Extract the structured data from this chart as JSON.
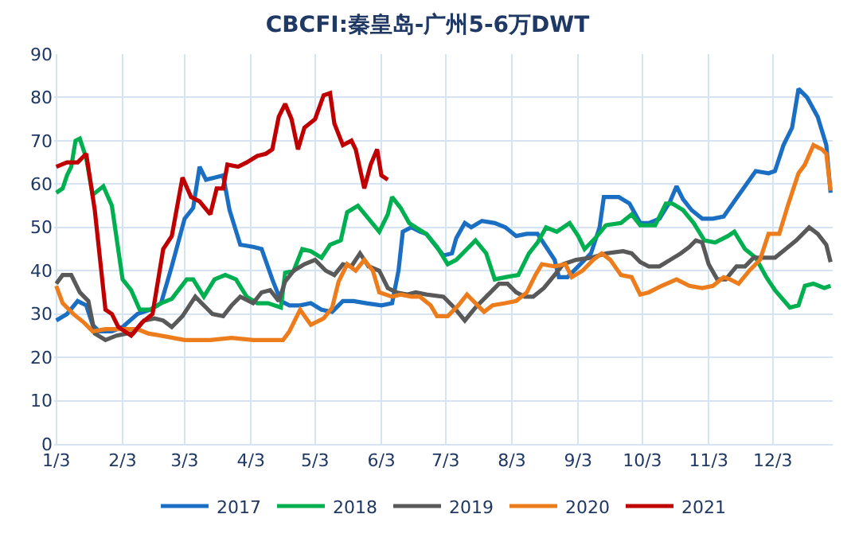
{
  "chart_data": {
    "type": "line",
    "title": "CBCFI:秦皇岛-广州5-6万DWT",
    "xlim": [
      "--01-02",
      "--12-31"
    ],
    "xticks": [
      {
        "value": "--01-03",
        "label": "1/3"
      },
      {
        "value": "--02-03",
        "label": "2/3"
      },
      {
        "value": "--03-03",
        "label": "3/3"
      },
      {
        "value": "--04-03",
        "label": "4/3"
      },
      {
        "value": "--05-03",
        "label": "5/3"
      },
      {
        "value": "--06-03",
        "label": "6/3"
      },
      {
        "value": "--07-03",
        "label": "7/3"
      },
      {
        "value": "--08-03",
        "label": "8/3"
      },
      {
        "value": "--09-03",
        "label": "9/3"
      },
      {
        "value": "--10-03",
        "label": "10/3"
      },
      {
        "value": "--11-03",
        "label": "11/3"
      },
      {
        "value": "--12-03",
        "label": "12/3"
      }
    ],
    "ylim": [
      0,
      90
    ],
    "yticks": [
      0,
      10,
      20,
      30,
      40,
      50,
      60,
      70,
      80,
      90
    ],
    "grid": true,
    "legend": "bottom",
    "series": [
      {
        "name": "2017",
        "color": "#1b6fc2",
        "x": [
          "--01-03",
          "--01-08",
          "--01-13",
          "--01-17",
          "--01-20",
          "--01-23",
          "--01-29",
          "--02-03",
          "--02-10",
          "--02-16",
          "--02-21",
          "--02-26",
          "--03-03",
          "--03-07",
          "--03-10",
          "--03-13",
          "--03-17",
          "--03-21",
          "--03-24",
          "--03-29",
          "--04-04",
          "--04-08",
          "--04-13",
          "--04-17",
          "--04-21",
          "--04-26",
          "--05-01",
          "--05-06",
          "--05-11",
          "--05-16",
          "--05-21",
          "--05-27",
          "--06-03",
          "--06-08",
          "--06-11",
          "--06-13",
          "--06-17",
          "--06-21",
          "--06-24",
          "--06-28",
          "--07-02",
          "--07-06",
          "--07-08",
          "--07-12",
          "--07-15",
          "--07-20",
          "--07-26",
          "--07-31",
          "--08-05",
          "--08-10",
          "--08-15",
          "--08-19",
          "--08-23",
          "--08-25",
          "--08-29",
          "--09-04",
          "--09-09",
          "--09-13",
          "--09-15",
          "--09-22",
          "--09-27",
          "--10-02",
          "--10-06",
          "--10-11",
          "--10-16",
          "--10-19",
          "--10-22",
          "--10-26",
          "--10-31",
          "--11-05",
          "--11-10",
          "--11-15",
          "--11-20",
          "--11-25",
          "--12-01",
          "--12-04",
          "--12-08",
          "--12-12",
          "--12-15",
          "--12-19",
          "--12-24",
          "--12-28",
          "--12-30"
        ],
        "values": [
          28.5,
          30,
          33,
          32,
          27.5,
          26,
          26,
          27,
          30,
          31,
          32.5,
          41,
          52,
          54.5,
          64,
          61,
          61.5,
          62,
          54,
          46,
          45.5,
          45,
          38,
          33,
          32,
          32,
          32.5,
          31,
          30.5,
          33,
          33,
          32.5,
          32,
          32.5,
          40,
          49,
          50,
          49,
          48.5,
          46,
          43.5,
          44,
          47.5,
          51,
          50,
          51.5,
          51,
          50,
          48,
          48.5,
          48.5,
          45.5,
          42.5,
          38.5,
          38.5,
          41.5,
          44,
          50,
          57,
          57,
          55.5,
          51,
          51,
          52,
          56,
          59.5,
          56.5,
          54,
          52,
          52,
          52.5,
          56,
          59.5,
          63,
          62.5,
          63,
          69,
          73,
          82,
          80,
          75.5,
          69,
          58
        ]
      },
      {
        "name": "2018",
        "color": "#00b050",
        "x": [
          "--01-03",
          "--01-06",
          "--01-08",
          "--01-10",
          "--01-12",
          "--01-14",
          "--01-17",
          "--01-20",
          "--01-25",
          "--01-29",
          "--02-03",
          "--02-07",
          "--02-11",
          "--02-16",
          "--02-21",
          "--02-26",
          "--03-04",
          "--03-07",
          "--03-12",
          "--03-17",
          "--03-22",
          "--03-27",
          "--04-01",
          "--04-06",
          "--04-11",
          "--04-17",
          "--04-19",
          "--04-23",
          "--04-27",
          "--05-01",
          "--05-06",
          "--05-10",
          "--05-15",
          "--05-18",
          "--05-23",
          "--05-28",
          "--06-02",
          "--06-06",
          "--06-08",
          "--06-12",
          "--06-16",
          "--06-19",
          "--06-24",
          "--06-29",
          "--07-04",
          "--07-08",
          "--07-13",
          "--07-17",
          "--07-22",
          "--07-26",
          "--07-31",
          "--08-06",
          "--08-11",
          "--08-15",
          "--08-19",
          "--08-24",
          "--08-30",
          "--09-03",
          "--09-06",
          "--09-11",
          "--09-16",
          "--09-23",
          "--09-28",
          "--10-02",
          "--10-09",
          "--10-14",
          "--10-17",
          "--10-22",
          "--10-27",
          "--11-01",
          "--11-06",
          "--11-12",
          "--11-15",
          "--11-20",
          "--11-25",
          "--11-30",
          "--12-04",
          "--12-11",
          "--12-15",
          "--12-18",
          "--12-22",
          "--12-27",
          "--12-30"
        ],
        "values": [
          58,
          59,
          62,
          64,
          70,
          70.5,
          66,
          57.5,
          59.5,
          55,
          38,
          35.5,
          31,
          31,
          32.5,
          33.5,
          38,
          38,
          34,
          38,
          39,
          38,
          34,
          32.5,
          32.5,
          31.5,
          39.5,
          40,
          45,
          44.5,
          43,
          46,
          47,
          53.5,
          55,
          52,
          49,
          53,
          57,
          54.5,
          51,
          50,
          48.5,
          45.5,
          41.5,
          42.5,
          45,
          47,
          44,
          38,
          38.5,
          39,
          44,
          46.5,
          50,
          49,
          51,
          48,
          45,
          47.5,
          50.5,
          51,
          53,
          50.5,
          50.5,
          55.5,
          55.5,
          54,
          51,
          47,
          46.5,
          48,
          49,
          45,
          43,
          38.5,
          35.5,
          31.5,
          32,
          36.5,
          37,
          36,
          36.5
        ]
      },
      {
        "name": "2019",
        "color": "#595959",
        "x": [
          "--01-03",
          "--01-06",
          "--01-10",
          "--01-14",
          "--01-18",
          "--01-21",
          "--01-26",
          "--01-31",
          "--02-05",
          "--02-08",
          "--02-13",
          "--02-18",
          "--02-22",
          "--02-26",
          "--03-02",
          "--03-08",
          "--03-11",
          "--03-16",
          "--03-21",
          "--03-25",
          "--03-29",
          "--04-04",
          "--04-08",
          "--04-12",
          "--04-16",
          "--04-19",
          "--04-23",
          "--04-28",
          "--05-03",
          "--05-08",
          "--05-12",
          "--05-16",
          "--05-20",
          "--05-24",
          "--05-28",
          "--06-02",
          "--06-06",
          "--06-10",
          "--06-15",
          "--06-19",
          "--06-24",
          "--07-02",
          "--07-07",
          "--07-12",
          "--07-17",
          "--07-22",
          "--07-28",
          "--08-01",
          "--08-05",
          "--08-09",
          "--08-13",
          "--08-18",
          "--08-23",
          "--08-27",
          "--09-02",
          "--09-09",
          "--09-16",
          "--09-24",
          "--09-28",
          "--10-02",
          "--10-06",
          "--10-11",
          "--10-16",
          "--10-21",
          "--10-25",
          "--10-28",
          "--10-31",
          "--11-03",
          "--11-07",
          "--11-11",
          "--11-16",
          "--11-20",
          "--11-24",
          "--11-30",
          "--12-04",
          "--12-09",
          "--12-14",
          "--12-20",
          "--12-24",
          "--12-28",
          "--12-30"
        ],
        "values": [
          37,
          39,
          39,
          35,
          33,
          25.5,
          24,
          25,
          25.5,
          25.5,
          28.5,
          29,
          28.5,
          27,
          29.5,
          34,
          32.5,
          30,
          29.5,
          32,
          34,
          32.5,
          35,
          35.5,
          33,
          37.5,
          40,
          41.5,
          42.5,
          40,
          39,
          41.5,
          41,
          44,
          41,
          40,
          36,
          35,
          34.5,
          35,
          34.5,
          34,
          31.5,
          28.5,
          31.5,
          34,
          37,
          37,
          35,
          34,
          34,
          36,
          39,
          41.5,
          42.5,
          43,
          44,
          44.5,
          44,
          42,
          41,
          41,
          42.5,
          44,
          45.5,
          47,
          46.5,
          41.5,
          38,
          38,
          41,
          41,
          43,
          43,
          43,
          45,
          47,
          50,
          48.5,
          46,
          42
        ]
      },
      {
        "name": "2020",
        "color": "#ed7d1c",
        "x": [
          "--01-03",
          "--01-06",
          "--01-11",
          "--01-16",
          "--01-20",
          "--01-26",
          "--02-03",
          "--02-10",
          "--02-15",
          "--02-21",
          "--03-03",
          "--03-15",
          "--03-25",
          "--04-04",
          "--04-11",
          "--04-18",
          "--04-21",
          "--04-26",
          "--05-01",
          "--05-07",
          "--05-11",
          "--05-14",
          "--05-18",
          "--05-22",
          "--05-26",
          "--05-30",
          "--06-02",
          "--06-08",
          "--06-12",
          "--06-17",
          "--06-21",
          "--06-26",
          "--06-29",
          "--07-04",
          "--07-09",
          "--07-13",
          "--07-17",
          "--07-21",
          "--07-25",
          "--07-31",
          "--08-05",
          "--08-10",
          "--08-14",
          "--08-17",
          "--08-23",
          "--08-28",
          "--08-31",
          "--09-05",
          "--09-10",
          "--09-14",
          "--09-18",
          "--09-23",
          "--09-28",
          "--10-02",
          "--10-06",
          "--10-12",
          "--10-19",
          "--10-25",
          "--10-31",
          "--11-05",
          "--11-10",
          "--11-13",
          "--11-17",
          "--11-22",
          "--11-27",
          "--12-01",
          "--12-06",
          "--12-10",
          "--12-15",
          "--12-18",
          "--12-22",
          "--12-26",
          "--12-28",
          "--12-30"
        ],
        "values": [
          36.5,
          32.5,
          30,
          28,
          26,
          26.5,
          26.5,
          26.5,
          25.5,
          25,
          24,
          24,
          24.5,
          24,
          24,
          24,
          26,
          31,
          27.5,
          29,
          31.5,
          37.5,
          41.5,
          40,
          42.5,
          40,
          35,
          34,
          34.5,
          34,
          34,
          32,
          29.5,
          29.5,
          32,
          34.5,
          32.5,
          30.5,
          32,
          32.5,
          33,
          35,
          39,
          41.5,
          41,
          41.5,
          38.5,
          40,
          42.5,
          44,
          42.5,
          39,
          38.5,
          34.5,
          35,
          36.5,
          38,
          36.5,
          36,
          36.5,
          38.5,
          38,
          37,
          40,
          42.5,
          48.5,
          48.5,
          55,
          62.5,
          64.5,
          69,
          68,
          67,
          58.5
        ]
      },
      {
        "name": "2021",
        "color": "#c00000",
        "x": [
          "--01-03",
          "--01-08",
          "--01-13",
          "--01-17",
          "--01-21",
          "--01-26",
          "--01-29",
          "--02-01",
          "--02-07",
          "--02-12",
          "--02-17",
          "--02-22",
          "--02-26",
          "--03-02",
          "--03-06",
          "--03-10",
          "--03-15",
          "--03-18",
          "--03-21",
          "--03-23",
          "--03-28",
          "--04-01",
          "--04-06",
          "--04-10",
          "--04-13",
          "--04-16",
          "--04-19",
          "--04-22",
          "--04-25",
          "--04-28",
          "--05-03",
          "--05-07",
          "--05-10",
          "--05-12",
          "--05-16",
          "--05-20",
          "--05-22",
          "--05-26",
          "--05-29",
          "--06-01",
          "--06-03",
          "--06-06"
        ],
        "values": [
          64,
          65,
          65,
          67,
          54,
          31,
          30,
          27,
          25,
          28,
          30,
          45,
          48,
          61.5,
          57,
          56,
          53,
          59,
          59,
          64.5,
          64,
          65,
          66.5,
          67,
          68,
          75.5,
          78.5,
          75,
          68,
          73,
          75,
          80.5,
          81,
          74,
          69,
          70,
          68,
          59,
          64.5,
          68,
          62,
          61
        ]
      }
    ]
  }
}
